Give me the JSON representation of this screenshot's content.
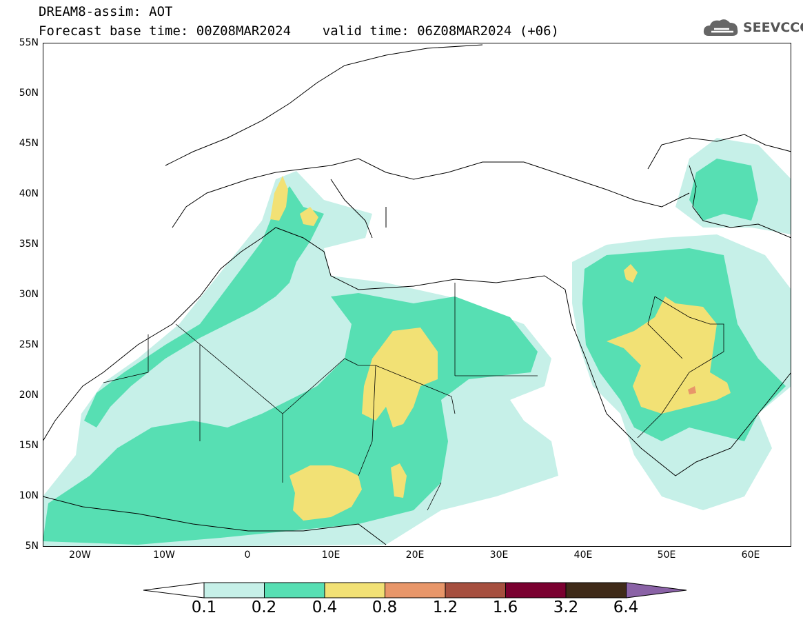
{
  "title": {
    "line1": "DREAM8-assim: AOT",
    "line2": "Forecast base time: 00Z08MAR2024    valid time: 06Z08MAR2024 (+06)"
  },
  "logo": {
    "text": "SEEVCCC",
    "icon": "cloud-icon"
  },
  "map": {
    "latitude_labels": [
      "55N",
      "50N",
      "45N",
      "40N",
      "35N",
      "30N",
      "25N",
      "20N",
      "15N",
      "10N",
      "5N"
    ],
    "longitude_labels": [
      "20W",
      "10W",
      "0",
      "10E",
      "20E",
      "30E",
      "40E",
      "50E",
      "60E"
    ]
  },
  "colorbar": {
    "labels": [
      "0.1",
      "0.2",
      "0.4",
      "0.8",
      "1.2",
      "1.6",
      "3.2",
      "6.4"
    ],
    "colors": [
      "#ffffff",
      "#c6f0e8",
      "#57dfb3",
      "#f2e175",
      "#e89669",
      "#a64f3f",
      "#7a0030",
      "#3f2a18",
      "#8a62a6"
    ]
  }
}
